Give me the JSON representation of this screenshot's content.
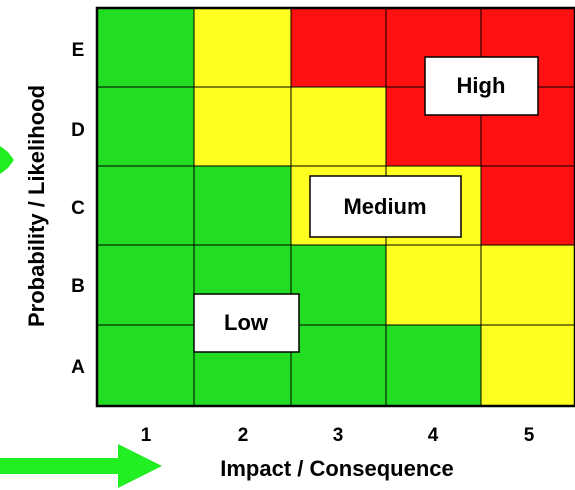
{
  "matrix": {
    "x_axis_title": "Impact / Consequence",
    "y_axis_title": "Probability / Likelihood",
    "columns": [
      "1",
      "2",
      "3",
      "4",
      "5"
    ],
    "rows": [
      "E",
      "D",
      "C",
      "B",
      "A"
    ],
    "cell_levels": [
      [
        "low",
        "medium",
        "high",
        "high",
        "high"
      ],
      [
        "low",
        "medium",
        "medium",
        "high",
        "high"
      ],
      [
        "low",
        "low",
        "medium",
        "medium",
        "high"
      ],
      [
        "low",
        "low",
        "low",
        "medium",
        "medium"
      ],
      [
        "low",
        "low",
        "low",
        "low",
        "medium"
      ]
    ],
    "colors": {
      "low": "#22dd22",
      "medium": "#ffff22",
      "high": "#ff1111",
      "arrow": "#22ee22"
    }
  },
  "zones": {
    "high": "High",
    "medium": "Medium",
    "low": "Low"
  }
}
